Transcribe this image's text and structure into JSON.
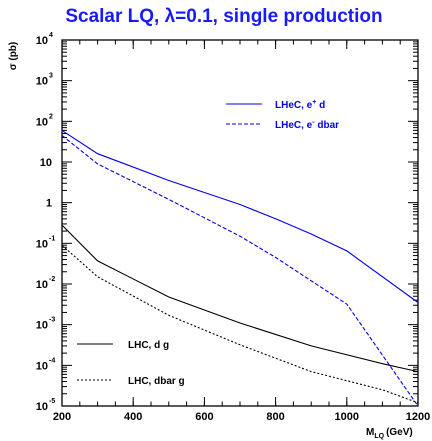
{
  "chart_data": {
    "type": "line",
    "title": "Scalar LQ, λ=0.1, single production",
    "xlabel": "M",
    "xlabel_sub": "LQ",
    "xlabel_unit": "(GeV)",
    "ylabel": "σ (pb)",
    "x_scale": "linear",
    "y_scale": "log",
    "xlim": [
      200,
      1200
    ],
    "ylim": [
      1e-05,
      10000
    ],
    "x_ticks": [
      "200",
      "400",
      "600",
      "800",
      "1000",
      "1200"
    ],
    "y_ticks": [
      {
        "base": "10",
        "exp": "-5"
      },
      {
        "base": "10",
        "exp": "-4"
      },
      {
        "base": "10",
        "exp": "-3"
      },
      {
        "base": "10",
        "exp": "-2"
      },
      {
        "base": "10",
        "exp": "-1"
      },
      {
        "base": "1",
        "exp": ""
      },
      {
        "base": "10",
        "exp": ""
      },
      {
        "base": "10",
        "exp": "2"
      },
      {
        "base": "10",
        "exp": "3"
      },
      {
        "base": "10",
        "exp": "4"
      }
    ],
    "series": [
      {
        "name": "LHeC, e",
        "name_sup": "+",
        "name_tail": " d",
        "color": "#0000ee",
        "style": "solid",
        "legend_pos": "top-right",
        "x": [
          200,
          300,
          500,
          700,
          800,
          900,
          1000,
          1200
        ],
        "y": [
          60,
          16,
          3.5,
          0.9,
          0.4,
          0.17,
          0.065,
          0.0035
        ]
      },
      {
        "name": "LHeC, e",
        "name_sup": "-",
        "name_tail": " dbar",
        "color": "#0000ee",
        "style": "dashed",
        "legend_pos": "top-right",
        "x": [
          200,
          300,
          500,
          700,
          800,
          900,
          1000,
          1200
        ],
        "y": [
          45,
          9,
          1.2,
          0.15,
          0.045,
          0.012,
          0.0032,
          1e-05
        ]
      },
      {
        "name": "LHC, d g",
        "name_sup": "",
        "name_tail": "",
        "color": "#000000",
        "style": "solid",
        "legend_pos": "bottom-left",
        "x": [
          200,
          300,
          500,
          700,
          900,
          1100,
          1200
        ],
        "y": [
          0.28,
          0.037,
          0.0048,
          0.0011,
          0.0003,
          0.00011,
          7e-05
        ]
      },
      {
        "name": "LHC, dbar g",
        "name_sup": "",
        "name_tail": "",
        "color": "#000000",
        "style": "dotted",
        "legend_pos": "bottom-left",
        "x": [
          200,
          300,
          500,
          700,
          900,
          1100,
          1200
        ],
        "y": [
          0.09,
          0.015,
          0.0017,
          0.00032,
          7e-05,
          2.5e-05,
          1.2e-05
        ]
      }
    ]
  }
}
